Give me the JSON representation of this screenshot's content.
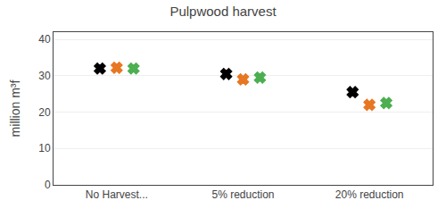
{
  "chart_data": {
    "type": "scatter",
    "title": "Pulpwood harvest",
    "ylabel": "million m³f",
    "categories": [
      "No Harvest...",
      "5% reduction",
      "20% reduction"
    ],
    "series": [
      {
        "color": "#000000",
        "values": [
          32.0,
          30.5,
          25.5
        ]
      },
      {
        "color": "#E87722",
        "values": [
          32.2,
          29.0,
          22.0
        ]
      },
      {
        "color": "#4CAF50",
        "values": [
          32.0,
          29.5,
          22.5
        ]
      }
    ],
    "ylim": [
      0,
      42
    ],
    "yticks": [
      0,
      10,
      20,
      30,
      40
    ],
    "grid": true,
    "marker": "x"
  }
}
